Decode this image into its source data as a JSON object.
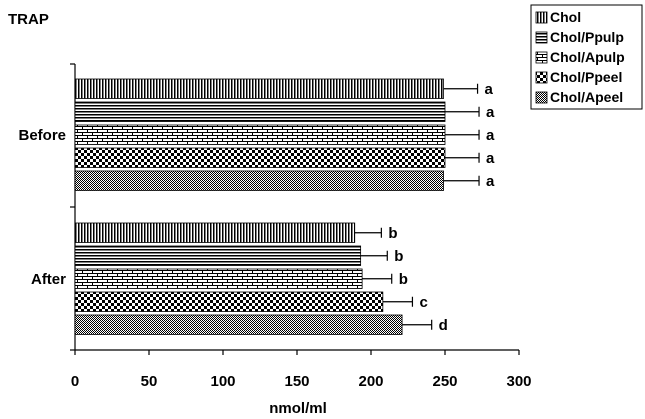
{
  "chart_data": {
    "type": "bar",
    "orientation": "horizontal",
    "title": "TRAP",
    "xlabel": "nmol/ml",
    "ylabel": "",
    "xlim": [
      0,
      300
    ],
    "x_ticks": [
      "0",
      "50",
      "100",
      "150",
      "200",
      "250",
      "300"
    ],
    "grid": false,
    "legend_position": "top-right",
    "categories": [
      "Before",
      "After"
    ],
    "series": [
      {
        "name": "Chol",
        "pattern": "vertical-lines",
        "values": [
          249,
          189
        ],
        "errors": [
          23,
          18
        ],
        "labels": [
          "a",
          "b"
        ]
      },
      {
        "name": "Chol/Ppulp",
        "pattern": "horizontal-lines",
        "values": [
          250,
          193
        ],
        "errors": [
          23,
          18
        ],
        "labels": [
          "a",
          "b"
        ]
      },
      {
        "name": "Chol/Apulp",
        "pattern": "bricks",
        "values": [
          250,
          194
        ],
        "errors": [
          23,
          20
        ],
        "labels": [
          "a",
          "b"
        ]
      },
      {
        "name": "Chol/Ppeel",
        "pattern": "checkerboard",
        "values": [
          250,
          208
        ],
        "errors": [
          23,
          20
        ],
        "labels": [
          "a",
          "c"
        ]
      },
      {
        "name": "Chol/Apeel",
        "pattern": "dots",
        "values": [
          249,
          221
        ],
        "errors": [
          24,
          20
        ],
        "labels": [
          "a",
          "d"
        ]
      }
    ]
  },
  "colors": {
    "ink": "#000000",
    "background": "#ffffff"
  }
}
